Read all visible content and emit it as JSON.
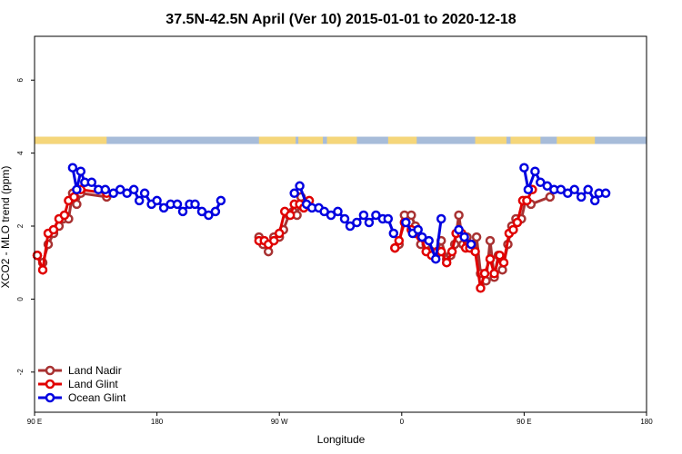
{
  "chart_data": {
    "type": "line",
    "title": "37.5N-42.5N April (Ver 10)   2015-01-01 to 2020-12-18",
    "xlabel": "Longitude",
    "ylabel": "XCO2 - MLO trend (ppm)",
    "xlim": [
      90,
      540
    ],
    "ylim": [
      -3.1,
      7.2
    ],
    "x_ticks": [
      {
        "value": 90,
        "label": "90 E"
      },
      {
        "value": 180,
        "label": "180"
      },
      {
        "value": 270,
        "label": "90 W"
      },
      {
        "value": 360,
        "label": "0"
      },
      {
        "value": 450,
        "label": "90 E"
      },
      {
        "value": 540,
        "label": "180"
      }
    ],
    "y_ticks": [
      {
        "value": -2,
        "label": "-2"
      },
      {
        "value": 0,
        "label": "0"
      },
      {
        "value": 2,
        "label": "2"
      },
      {
        "value": 4,
        "label": "4"
      },
      {
        "value": 6,
        "label": "6"
      }
    ],
    "grid": false,
    "legend_position": "bottom-left",
    "land_ocean_strip": {
      "y_range": [
        4.25,
        4.45
      ],
      "land_color": "#f5d67a",
      "ocean_color": "#a7bcd9",
      "land_segments": [
        [
          90,
          143
        ],
        [
          255,
          282
        ],
        [
          284,
          302
        ],
        [
          305,
          327
        ],
        [
          350,
          371
        ],
        [
          414,
          437
        ],
        [
          440,
          462
        ],
        [
          474,
          502
        ]
      ]
    },
    "series": [
      {
        "name": "Land Nadir",
        "color": "#a83232",
        "segments": [
          [
            [
              92,
              1.2
            ],
            [
              96,
              1.0
            ],
            [
              100,
              1.5
            ],
            [
              104,
              1.8
            ],
            [
              108,
              2.0
            ],
            [
              111,
              2.2
            ],
            [
              115,
              2.2
            ],
            [
              118,
              2.9
            ],
            [
              121,
              2.6
            ],
            [
              124,
              2.9
            ],
            [
              143,
              2.8
            ]
          ],
          [
            [
              255,
              1.7
            ],
            [
              258,
              1.5
            ],
            [
              262,
              1.3
            ],
            [
              266,
              1.7
            ],
            [
              270,
              1.7
            ],
            [
              273,
              1.9
            ],
            [
              277,
              2.3
            ],
            [
              280,
              2.4
            ],
            [
              283,
              2.3
            ],
            [
              286,
              2.8
            ],
            [
              289,
              2.6
            ]
          ],
          [
            [
              355,
              1.4
            ],
            [
              358,
              1.5
            ],
            [
              362,
              2.3
            ],
            [
              367,
              2.3
            ],
            [
              370,
              2.0
            ],
            [
              374,
              1.5
            ],
            [
              378,
              1.5
            ],
            [
              382,
              1.3
            ],
            [
              385,
              1.2
            ],
            [
              389,
              1.6
            ],
            [
              393,
              1.1
            ],
            [
              396,
              1.2
            ],
            [
              399,
              1.5
            ],
            [
              402,
              2.3
            ],
            [
              405,
              1.5
            ],
            [
              408,
              1.7
            ],
            [
              412,
              1.5
            ],
            [
              415,
              1.7
            ],
            [
              418,
              0.7
            ],
            [
              422,
              0.5
            ],
            [
              425,
              1.6
            ],
            [
              428,
              0.6
            ],
            [
              431,
              1.2
            ],
            [
              434,
              0.8
            ],
            [
              438,
              1.5
            ],
            [
              441,
              2.0
            ],
            [
              444,
              2.2
            ],
            [
              448,
              2.2
            ],
            [
              451,
              2.7
            ],
            [
              455,
              2.6
            ],
            [
              469,
              2.8
            ]
          ]
        ]
      },
      {
        "name": "Land Glint",
        "color": "#e00000",
        "segments": [
          [
            [
              92,
              1.2
            ],
            [
              96,
              0.8
            ],
            [
              100,
              1.8
            ],
            [
              104,
              1.9
            ],
            [
              108,
              2.2
            ],
            [
              112,
              2.3
            ],
            [
              115,
              2.7
            ],
            [
              119,
              2.8
            ],
            [
              124,
              3.0
            ],
            [
              143,
              2.9
            ]
          ],
          [
            [
              255,
              1.6
            ],
            [
              259,
              1.6
            ],
            [
              262,
              1.5
            ],
            [
              266,
              1.6
            ],
            [
              270,
              1.8
            ],
            [
              274,
              2.4
            ],
            [
              278,
              2.3
            ],
            [
              281,
              2.6
            ],
            [
              285,
              2.6
            ],
            [
              288,
              2.5
            ],
            [
              292,
              2.7
            ]
          ],
          [
            [
              355,
              1.4
            ],
            [
              358,
              1.6
            ],
            [
              362,
              2.1
            ],
            [
              367,
              1.9
            ],
            [
              370,
              1.8
            ],
            [
              374,
              1.7
            ],
            [
              378,
              1.3
            ],
            [
              382,
              1.2
            ],
            [
              386,
              1.3
            ],
            [
              389,
              1.3
            ],
            [
              393,
              1.0
            ],
            [
              397,
              1.3
            ],
            [
              400,
              1.8
            ],
            [
              404,
              1.8
            ],
            [
              407,
              1.4
            ],
            [
              410,
              1.4
            ],
            [
              414,
              1.3
            ],
            [
              418,
              0.3
            ],
            [
              421,
              0.7
            ],
            [
              425,
              1.1
            ],
            [
              428,
              0.7
            ],
            [
              432,
              1.2
            ],
            [
              435,
              1.0
            ],
            [
              439,
              1.8
            ],
            [
              442,
              1.9
            ],
            [
              445,
              2.1
            ],
            [
              449,
              2.7
            ],
            [
              452,
              2.7
            ],
            [
              456,
              3.0
            ]
          ]
        ]
      },
      {
        "name": "Ocean Glint",
        "color": "#0000e0",
        "segments": [
          [
            [
              118,
              3.6
            ],
            [
              121,
              3.0
            ],
            [
              124,
              3.5
            ],
            [
              127,
              3.2
            ],
            [
              132,
              3.2
            ],
            [
              137,
              3.0
            ],
            [
              142,
              3.0
            ],
            [
              148,
              2.9
            ],
            [
              153,
              3.0
            ],
            [
              158,
              2.9
            ],
            [
              163,
              3.0
            ],
            [
              167,
              2.7
            ],
            [
              171,
              2.9
            ],
            [
              176,
              2.6
            ],
            [
              180,
              2.7
            ],
            [
              185,
              2.5
            ],
            [
              190,
              2.6
            ],
            [
              195,
              2.6
            ],
            [
              199,
              2.4
            ],
            [
              204,
              2.6
            ],
            [
              208,
              2.6
            ],
            [
              213,
              2.4
            ],
            [
              218,
              2.3
            ],
            [
              223,
              2.4
            ],
            [
              227,
              2.7
            ]
          ],
          [
            [
              281,
              2.9
            ],
            [
              285,
              3.1
            ],
            [
              290,
              2.6
            ],
            [
              294,
              2.5
            ],
            [
              299,
              2.5
            ],
            [
              303,
              2.4
            ],
            [
              308,
              2.3
            ],
            [
              313,
              2.4
            ],
            [
              318,
              2.2
            ],
            [
              322,
              2.0
            ],
            [
              327,
              2.1
            ],
            [
              332,
              2.3
            ],
            [
              336,
              2.1
            ],
            [
              341,
              2.3
            ],
            [
              346,
              2.2
            ],
            [
              350,
              2.2
            ],
            [
              354,
              1.8
            ]
          ],
          [
            [
              363,
              2.1
            ],
            [
              368,
              1.8
            ],
            [
              372,
              1.9
            ],
            [
              375,
              1.7
            ],
            [
              380,
              1.6
            ],
            [
              385,
              1.1
            ],
            [
              389,
              2.2
            ]
          ],
          [
            [
              402,
              1.9
            ],
            [
              406,
              1.7
            ],
            [
              411,
              1.5
            ]
          ],
          [
            [
              450,
              3.6
            ],
            [
              453,
              3.0
            ],
            [
              458,
              3.5
            ],
            [
              462,
              3.2
            ],
            [
              467,
              3.1
            ],
            [
              472,
              3.0
            ],
            [
              477,
              3.0
            ],
            [
              482,
              2.9
            ],
            [
              487,
              3.0
            ],
            [
              492,
              2.8
            ],
            [
              497,
              3.0
            ],
            [
              502,
              2.7
            ],
            [
              505,
              2.9
            ],
            [
              510,
              2.9
            ]
          ]
        ]
      }
    ]
  }
}
